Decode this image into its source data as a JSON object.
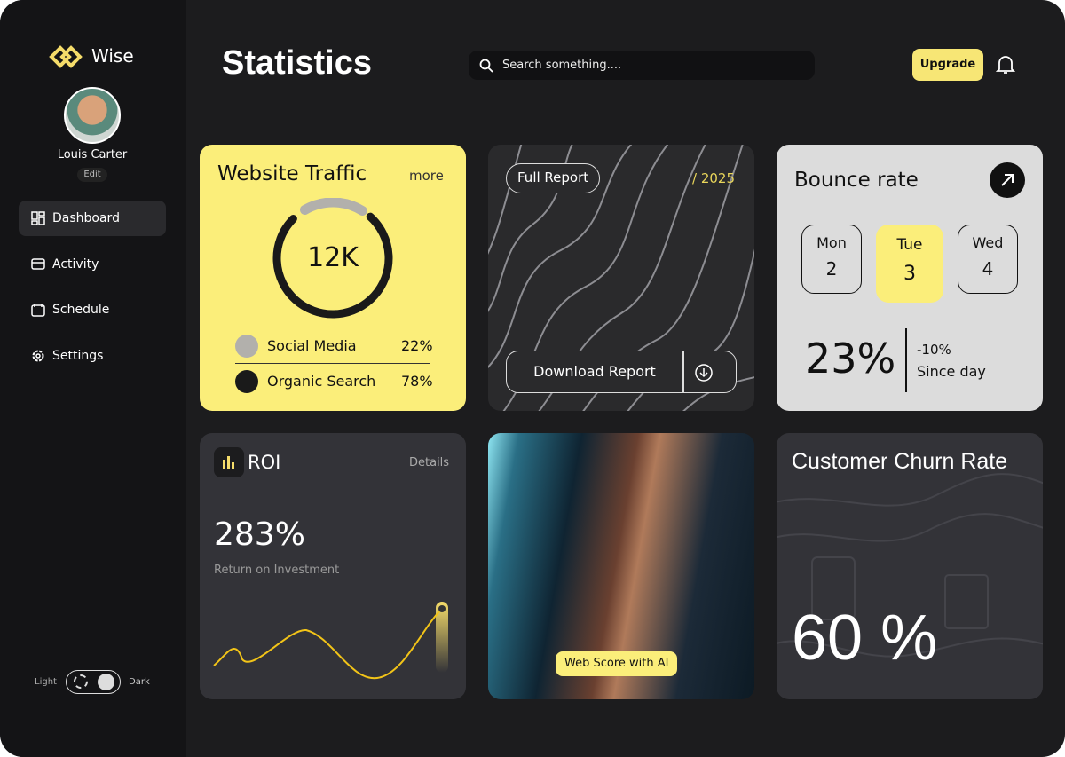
{
  "sidebar": {
    "brand": "Wise",
    "user": {
      "name": "Louis Carter",
      "edit": "Edit"
    },
    "nav": [
      "Dashboard",
      "Activity",
      "Schedule",
      "Settings"
    ],
    "theme": {
      "light": "Light",
      "dark": "Dark"
    }
  },
  "header": {
    "title": "Statistics",
    "search": "Search something....",
    "upgrade": "Upgrade"
  },
  "traffic": {
    "title": "Website Traffic",
    "more": "more",
    "total": "12K",
    "sources": [
      {
        "name": "Social Media",
        "share": "22%"
      },
      {
        "name": "Organic Search",
        "share": "78%"
      }
    ]
  },
  "report": {
    "label": "Full Report",
    "year": "/ 2025",
    "download": "Download Report"
  },
  "bounce": {
    "title": "Bounce rate",
    "days": [
      {
        "day": "Mon",
        "date": 2
      },
      {
        "day": "Tue",
        "date": 3
      },
      {
        "day": "Wed",
        "date": 4
      }
    ],
    "rate": "23%",
    "change": "-10%",
    "change_label": "Since day"
  },
  "roi": {
    "title": "ROI",
    "details": "Details",
    "value": "283%",
    "caption": "Return on Investment"
  },
  "photo": {
    "badge": "Web Score with AI"
  },
  "churn": {
    "title": "Customer Churn Rate",
    "value": "60 %"
  }
}
